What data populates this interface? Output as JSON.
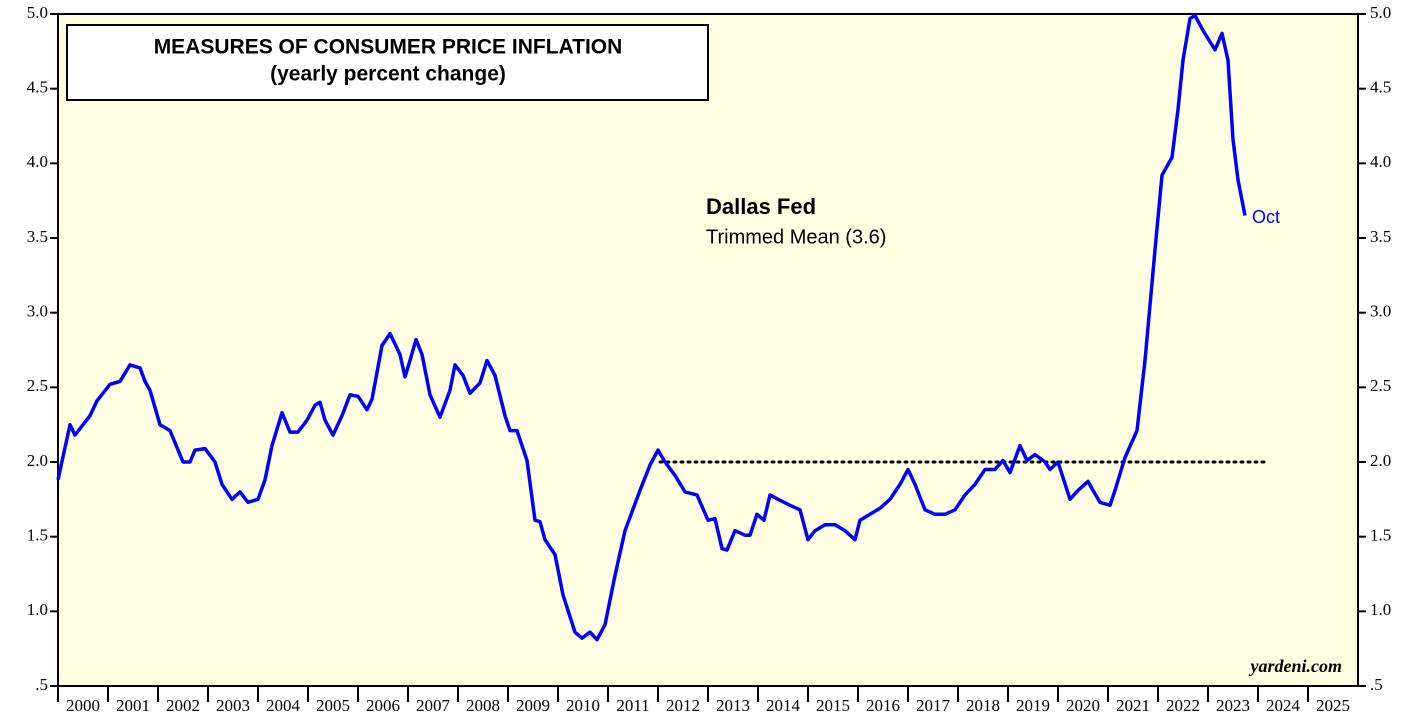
{
  "chart_data": {
    "type": "line",
    "title": "MEASURES OF CONSUMER PRICE INFLATION",
    "subtitle": "(yearly percent change)",
    "annotations": {
      "series_title": "Dallas Fed",
      "series_label": "Trimmed Mean (3.6)",
      "end_label": "Oct",
      "source": "yardeni.com"
    },
    "xlim": [
      2000,
      2026
    ],
    "xticks": [
      2000,
      2001,
      2002,
      2003,
      2004,
      2005,
      2006,
      2007,
      2008,
      2009,
      2010,
      2011,
      2012,
      2013,
      2014,
      2015,
      2016,
      2017,
      2018,
      2019,
      2020,
      2021,
      2022,
      2023,
      2024,
      2025
    ],
    "ylim": [
      0.5,
      5.0
    ],
    "yticks": [
      {
        "value": 0.5,
        "label": ".5"
      },
      {
        "value": 1.0,
        "label": "1.0"
      },
      {
        "value": 1.5,
        "label": "1.5"
      },
      {
        "value": 2.0,
        "label": "2.0"
      },
      {
        "value": 2.5,
        "label": "2.5"
      },
      {
        "value": 3.0,
        "label": "3.0"
      },
      {
        "value": 3.5,
        "label": "3.5"
      },
      {
        "value": 4.0,
        "label": "4.0"
      },
      {
        "value": 4.5,
        "label": "4.5"
      },
      {
        "value": 5.0,
        "label": "5.0"
      }
    ],
    "series": [
      {
        "color": "#0000ff",
        "x": [
          2000.0,
          2000.24,
          2000.34,
          2000.64,
          2000.78,
          2001.04,
          2001.24,
          2001.44,
          2001.64,
          2001.74,
          2001.84,
          2002.04,
          2002.24,
          2002.5,
          2002.64,
          2002.74,
          2002.94,
          2003.14,
          2003.28,
          2003.48,
          2003.64,
          2003.8,
          2004.0,
          2004.14,
          2004.28,
          2004.48,
          2004.64,
          2004.8,
          2004.98,
          2005.14,
          2005.24,
          2005.34,
          2005.5,
          2005.68,
          2005.84,
          2006.0,
          2006.18,
          2006.28,
          2006.48,
          2006.64,
          2006.84,
          2006.94,
          2007.04,
          2007.16,
          2007.28,
          2007.44,
          2007.64,
          2007.84,
          2007.94,
          2008.1,
          2008.24,
          2008.44,
          2008.58,
          2008.74,
          2008.94,
          2009.04,
          2009.18,
          2009.38,
          2009.54,
          2009.64,
          2009.74,
          2009.94,
          2010.1,
          2010.34,
          2010.48,
          2010.64,
          2010.78,
          2010.94,
          2011.14,
          2011.34,
          2011.64,
          2011.84,
          2012.0,
          2012.14,
          2012.34,
          2012.54,
          2012.78,
          2013.0,
          2013.14,
          2013.28,
          2013.38,
          2013.54,
          2013.74,
          2013.84,
          2013.98,
          2014.12,
          2014.24,
          2014.4,
          2014.64,
          2014.84,
          2015.0,
          2015.14,
          2015.34,
          2015.54,
          2015.74,
          2015.94,
          2016.04,
          2016.24,
          2016.44,
          2016.64,
          2016.84,
          2017.0,
          2017.14,
          2017.34,
          2017.54,
          2017.74,
          2017.94,
          2018.14,
          2018.34,
          2018.54,
          2018.74,
          2018.9,
          2019.04,
          2019.24,
          2019.38,
          2019.54,
          2019.74,
          2019.84,
          2020.0,
          2020.24,
          2020.4,
          2020.6,
          2020.7,
          2020.84,
          2021.04,
          2021.14,
          2021.34,
          2021.58,
          2021.74,
          2021.94,
          2022.08,
          2022.28,
          2022.4,
          2022.5,
          2022.64,
          2022.74,
          2022.9,
          2023.14,
          2023.28,
          2023.4,
          2023.5,
          2023.6,
          2023.74
        ],
        "values": [
          1.88,
          2.25,
          2.18,
          2.31,
          2.41,
          2.52,
          2.54,
          2.65,
          2.63,
          2.54,
          2.48,
          2.25,
          2.21,
          2.0,
          2.0,
          2.08,
          2.09,
          2.0,
          1.85,
          1.75,
          1.8,
          1.73,
          1.75,
          1.88,
          2.11,
          2.33,
          2.2,
          2.2,
          2.28,
          2.38,
          2.4,
          2.28,
          2.18,
          2.31,
          2.45,
          2.44,
          2.35,
          2.42,
          2.78,
          2.86,
          2.72,
          2.57,
          2.68,
          2.82,
          2.72,
          2.45,
          2.3,
          2.48,
          2.65,
          2.58,
          2.46,
          2.53,
          2.68,
          2.58,
          2.31,
          2.21,
          2.21,
          2.01,
          1.61,
          1.6,
          1.48,
          1.38,
          1.11,
          0.86,
          0.82,
          0.86,
          0.81,
          0.91,
          1.24,
          1.54,
          1.81,
          1.98,
          2.08,
          2.0,
          1.91,
          1.8,
          1.78,
          1.61,
          1.62,
          1.42,
          1.41,
          1.54,
          1.51,
          1.51,
          1.65,
          1.61,
          1.78,
          1.75,
          1.71,
          1.68,
          1.48,
          1.54,
          1.58,
          1.58,
          1.54,
          1.48,
          1.61,
          1.65,
          1.69,
          1.75,
          1.85,
          1.95,
          1.85,
          1.68,
          1.65,
          1.65,
          1.68,
          1.78,
          1.85,
          1.95,
          1.95,
          2.01,
          1.93,
          2.11,
          2.01,
          2.05,
          2.0,
          1.95,
          2.0,
          1.75,
          1.81,
          1.87,
          1.81,
          1.73,
          1.71,
          1.81,
          2.03,
          2.21,
          2.68,
          3.42,
          3.92,
          4.04,
          4.36,
          4.69,
          4.97,
          4.99,
          4.89,
          4.76,
          4.87,
          4.69,
          4.16,
          3.89,
          3.65
        ]
      }
    ],
    "target": {
      "x": [
        2012.04,
        2024.2
      ],
      "values": [
        2.0,
        2.0
      ]
    },
    "grid": false
  }
}
